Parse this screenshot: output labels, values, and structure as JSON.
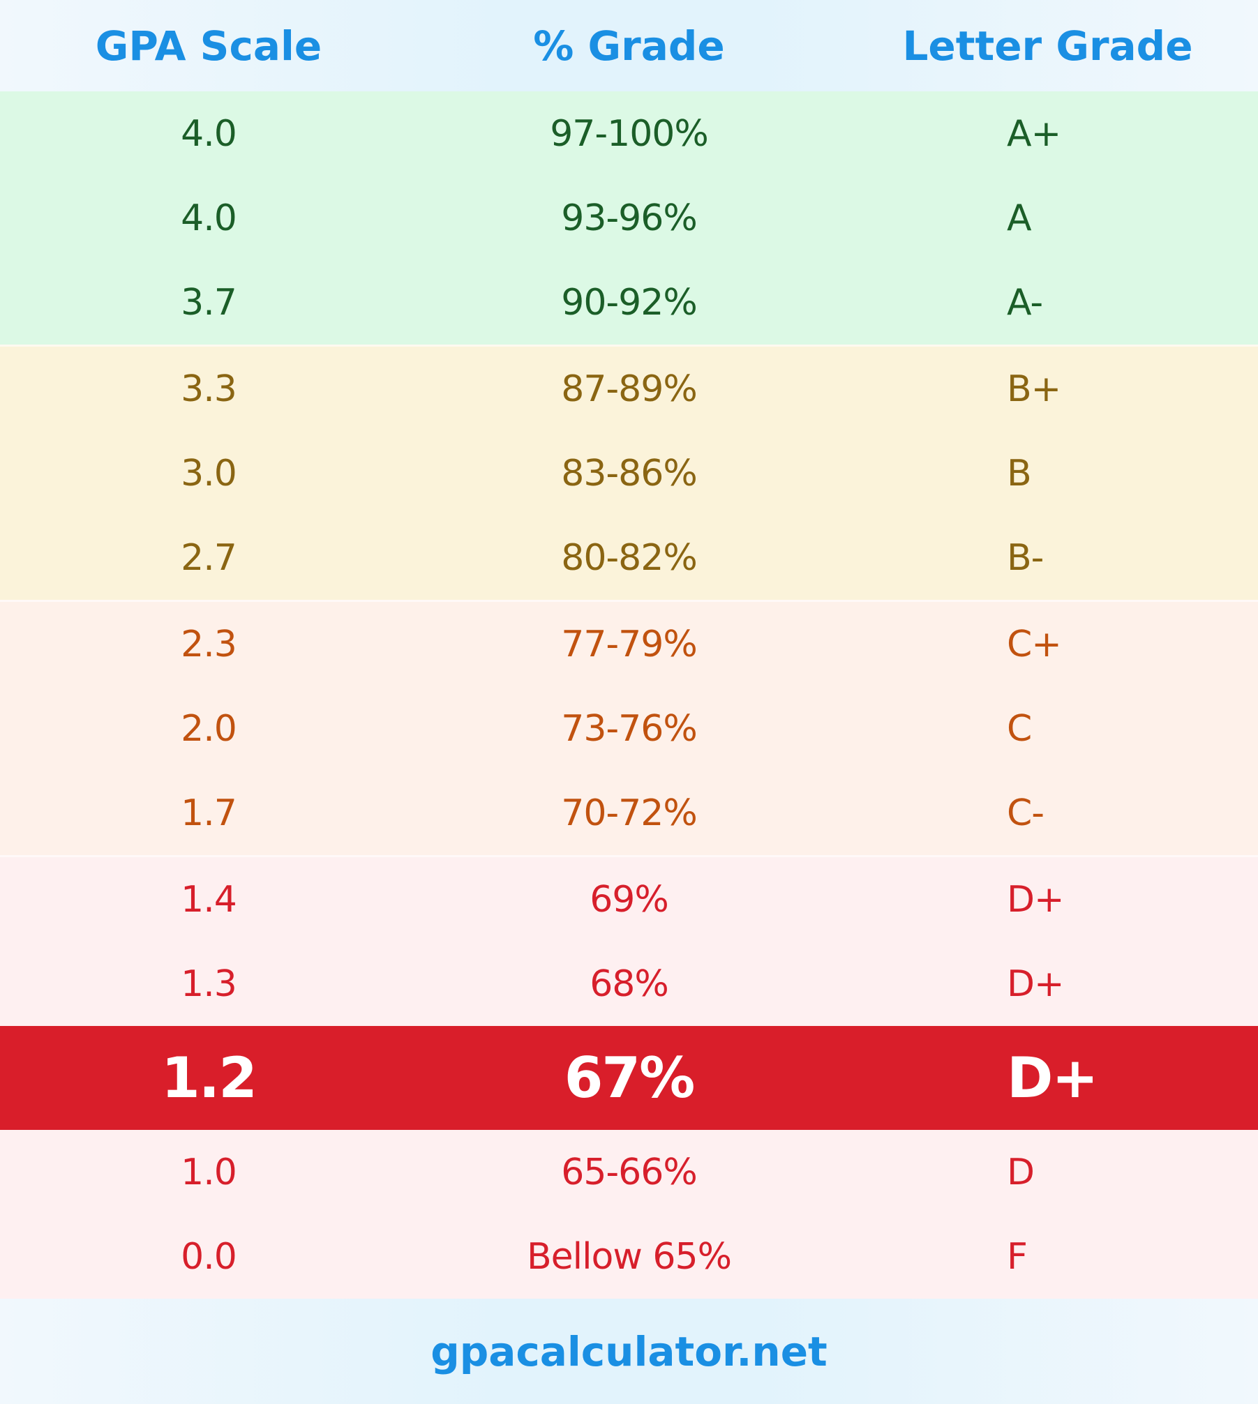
{
  "header": {
    "gpa": "GPA Scale",
    "percent": "% Grade",
    "letter": "Letter Grade"
  },
  "colors": {
    "header_text": "#1a8fe3",
    "green": "#1b5e28",
    "yellow": "#8a6512",
    "orange": "#c1520f",
    "red": "#d71f2b",
    "highlight": "#d91e2a"
  },
  "rows": [
    {
      "gpa": "4.0",
      "percent": "97-100%",
      "letter": "A+"
    },
    {
      "gpa": "4.0",
      "percent": "93-96%",
      "letter": "A"
    },
    {
      "gpa": "3.7",
      "percent": "90-92%",
      "letter": "A-"
    },
    {
      "gpa": "3.3",
      "percent": "87-89%",
      "letter": "B+"
    },
    {
      "gpa": "3.0",
      "percent": "83-86%",
      "letter": "B"
    },
    {
      "gpa": "2.7",
      "percent": "80-82%",
      "letter": "B-"
    },
    {
      "gpa": "2.3",
      "percent": "77-79%",
      "letter": "C+"
    },
    {
      "gpa": "2.0",
      "percent": "73-76%",
      "letter": "C"
    },
    {
      "gpa": "1.7",
      "percent": "70-72%",
      "letter": "C-"
    },
    {
      "gpa": "1.4",
      "percent": "69%",
      "letter": "D+"
    },
    {
      "gpa": "1.3",
      "percent": "68%",
      "letter": "D+"
    },
    {
      "gpa": "1.2",
      "percent": "67%",
      "letter": "D+",
      "highlighted": true
    },
    {
      "gpa": "1.0",
      "percent": "65-66%",
      "letter": "D"
    },
    {
      "gpa": "0.0",
      "percent": "Bellow 65%",
      "letter": "F"
    }
  ],
  "footer": {
    "site": "gpacalculator.net"
  }
}
